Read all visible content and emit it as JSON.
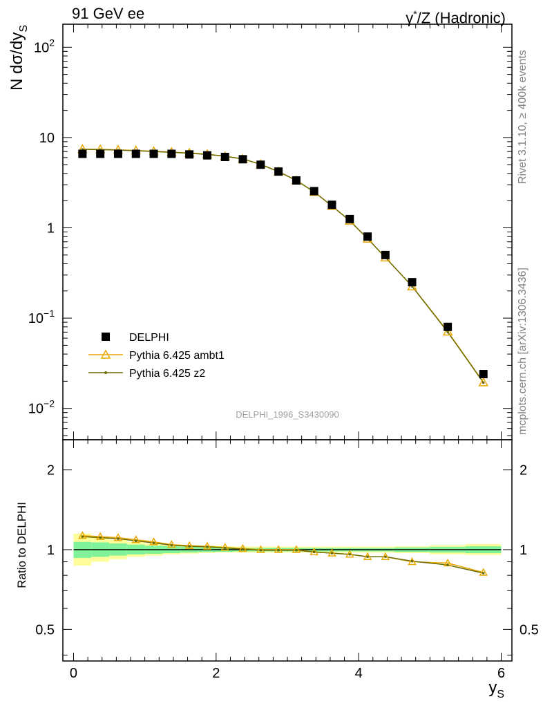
{
  "header": {
    "left": "91 GeV ee",
    "right_symbol": "γ",
    "right_sup": "*",
    "right_rest": "/Z (Hadronic)"
  },
  "side": {
    "rivet": "Rivet 3.1.10, ≥ 400k events",
    "mcplots": "mcplots.cern.ch [arXiv:1306.3436]"
  },
  "analysis_id": "DELPHI_1996_S3430090",
  "colors": {
    "data": "#000000",
    "ambt1": "#e8a800",
    "z2": "#6b6b00",
    "band_inner": "#7ff29a",
    "band_outer": "#fdfd9c"
  },
  "chart_data": [
    {
      "type": "scatter",
      "panel": "main",
      "ylabel": "N dσ/dy",
      "ylabel_sub": "S",
      "yscale": "log",
      "ylim": [
        0.0045,
        180
      ],
      "xlim": [
        -0.15,
        6.15
      ],
      "y_tick_labels": [
        {
          "v": 0.01,
          "base": "10",
          "exp": "−2"
        },
        {
          "v": 0.1,
          "base": "10",
          "exp": "−1"
        },
        {
          "v": 1,
          "base": "1",
          "exp": ""
        },
        {
          "v": 10,
          "base": "10",
          "exp": ""
        },
        {
          "v": 100,
          "base": "10",
          "exp": "2"
        }
      ],
      "legend_position": "bottom-left",
      "x": [
        0.125,
        0.375,
        0.625,
        0.875,
        1.125,
        1.375,
        1.625,
        1.875,
        2.125,
        2.375,
        2.625,
        2.875,
        3.125,
        3.375,
        3.625,
        3.875,
        4.125,
        4.375,
        4.75,
        5.25,
        5.75
      ],
      "series": [
        {
          "name": "DELPHI",
          "marker": "filled-square",
          "values": [
            6.6,
            6.6,
            6.6,
            6.6,
            6.6,
            6.6,
            6.5,
            6.35,
            6.1,
            5.75,
            5.0,
            4.2,
            3.35,
            2.55,
            1.8,
            1.25,
            0.8,
            0.5,
            0.25,
            0.08,
            0.024
          ]
        },
        {
          "name": "Pythia 6.425 ambt1",
          "marker": "open-triangle",
          "values": [
            7.45,
            7.4,
            7.3,
            7.2,
            7.05,
            6.9,
            6.75,
            6.55,
            6.2,
            5.8,
            5.05,
            4.2,
            3.35,
            2.5,
            1.75,
            1.2,
            0.76,
            0.47,
            0.225,
            0.071,
            0.0195
          ]
        },
        {
          "name": "Pythia 6.425 z2",
          "marker": "small-dot",
          "values": [
            7.4,
            7.35,
            7.25,
            7.15,
            7.0,
            6.85,
            6.7,
            6.5,
            6.2,
            5.8,
            5.05,
            4.2,
            3.35,
            2.5,
            1.75,
            1.2,
            0.76,
            0.47,
            0.225,
            0.07,
            0.0193
          ]
        }
      ]
    },
    {
      "type": "line",
      "panel": "ratio",
      "ylabel": "Ratio to DELPHI",
      "xlabel": "y",
      "xlabel_sub": "S",
      "yscale": "log",
      "ylim": [
        0.38,
        2.6
      ],
      "xlim": [
        -0.15,
        6.15
      ],
      "x_ticks": [
        0,
        2,
        4,
        6
      ],
      "y_tick_labels": [
        {
          "v": 0.5,
          "label": "0.5"
        },
        {
          "v": 1,
          "label": "1"
        },
        {
          "v": 2,
          "label": "2"
        }
      ],
      "x": [
        0.125,
        0.375,
        0.625,
        0.875,
        1.125,
        1.375,
        1.625,
        1.875,
        2.125,
        2.375,
        2.625,
        2.875,
        3.125,
        3.375,
        3.625,
        3.875,
        4.125,
        4.375,
        4.75,
        5.25,
        5.75
      ],
      "bin_edges": [
        0,
        0.25,
        0.5,
        0.75,
        1,
        1.25,
        1.5,
        1.75,
        2,
        2.25,
        2.5,
        2.75,
        3,
        3.25,
        3.5,
        3.75,
        4,
        4.25,
        4.5,
        5,
        5.5,
        6
      ],
      "band_inner": {
        "lo": [
          0.93,
          0.94,
          0.95,
          0.96,
          0.965,
          0.97,
          0.975,
          0.98,
          0.982,
          0.985,
          0.985,
          0.985,
          0.985,
          0.985,
          0.985,
          0.985,
          0.985,
          0.985,
          0.98,
          0.975,
          0.97
        ],
        "hi": [
          1.07,
          1.065,
          1.055,
          1.045,
          1.035,
          1.03,
          1.025,
          1.02,
          1.018,
          1.015,
          1.015,
          1.015,
          1.015,
          1.015,
          1.015,
          1.015,
          1.015,
          1.015,
          1.02,
          1.025,
          1.03
        ]
      },
      "band_outer": {
        "lo": [
          0.87,
          0.9,
          0.92,
          0.94,
          0.95,
          0.96,
          0.965,
          0.97,
          0.975,
          0.975,
          0.975,
          0.975,
          0.975,
          0.975,
          0.975,
          0.975,
          0.975,
          0.975,
          0.97,
          0.96,
          0.955
        ],
        "hi": [
          1.15,
          1.12,
          1.09,
          1.07,
          1.055,
          1.045,
          1.04,
          1.035,
          1.03,
          1.028,
          1.026,
          1.026,
          1.026,
          1.026,
          1.026,
          1.026,
          1.026,
          1.026,
          1.03,
          1.04,
          1.05
        ]
      },
      "series": [
        {
          "name": "Pythia 6.425 ambt1",
          "values": [
            1.13,
            1.12,
            1.11,
            1.09,
            1.07,
            1.045,
            1.035,
            1.03,
            1.02,
            1.01,
            1.0,
            1.0,
            1.0,
            0.98,
            0.97,
            0.96,
            0.94,
            0.94,
            0.9,
            0.89,
            0.82
          ]
        },
        {
          "name": "Pythia 6.425 z2",
          "values": [
            1.12,
            1.11,
            1.1,
            1.08,
            1.06,
            1.04,
            1.03,
            1.025,
            1.015,
            1.005,
            0.995,
            0.995,
            0.995,
            0.98,
            0.97,
            0.96,
            0.94,
            0.94,
            0.905,
            0.875,
            0.815
          ]
        }
      ]
    }
  ]
}
